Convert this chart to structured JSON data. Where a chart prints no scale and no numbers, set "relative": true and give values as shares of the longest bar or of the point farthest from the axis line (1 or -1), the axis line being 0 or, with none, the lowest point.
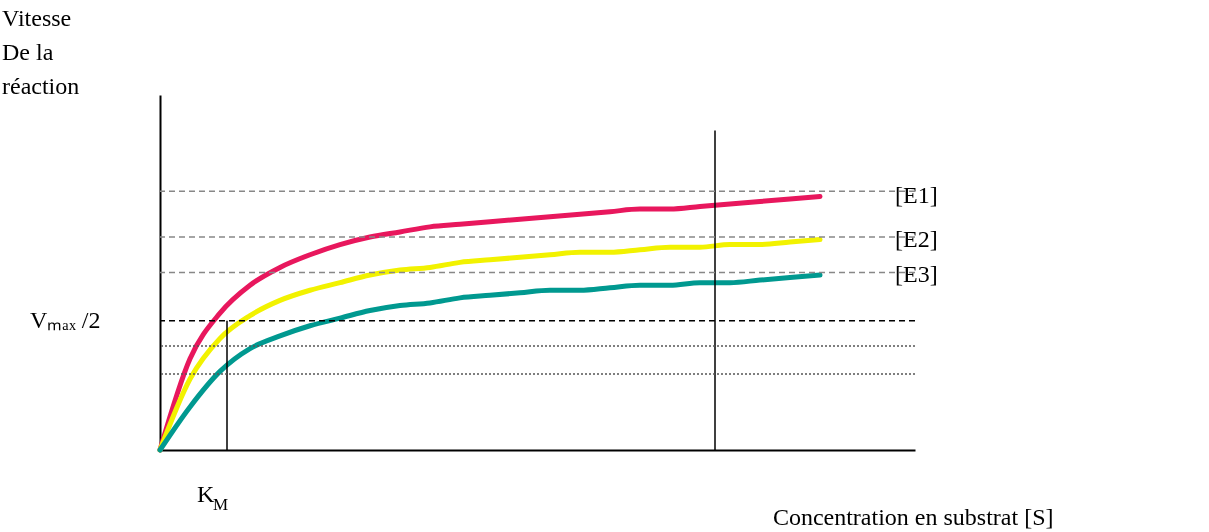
{
  "chart_data": {
    "type": "line",
    "relative": true,
    "xlabel": "Concentration en substrat [S]",
    "ylabel": "Vitesse\nDe la\nréaction",
    "categories": [
      null,
      null,
      null,
      null,
      null,
      null,
      null,
      null,
      null,
      null,
      null,
      null,
      null,
      null,
      null,
      null,
      null,
      null,
      null,
      null,
      null,
      null,
      null
    ],
    "series": [
      {
        "name": "[E1]",
        "color": "#e8175d",
        "values": [
          0,
          0.36,
          0.54,
          0.65,
          0.72,
          0.77,
          0.81,
          0.84,
          0.86,
          0.88,
          0.89,
          0.9,
          0.91,
          0.92,
          0.93,
          0.94,
          0.95,
          0.95,
          0.96,
          0.97,
          0.98,
          0.99,
          1
        ]
      },
      {
        "name": "[E2]",
        "color": "#f2f200",
        "values": [
          0,
          0.28,
          0.44,
          0.53,
          0.59,
          0.63,
          0.66,
          0.69,
          0.71,
          0.72,
          0.74,
          0.75,
          0.76,
          0.77,
          0.78,
          0.78,
          0.79,
          0.8,
          0.8,
          0.81,
          0.81,
          0.82,
          0.83
        ]
      },
      {
        "name": "[E3]",
        "color": "#009990",
        "values": [
          0,
          0.17,
          0.31,
          0.4,
          0.45,
          0.49,
          0.52,
          0.55,
          0.57,
          0.58,
          0.6,
          0.61,
          0.62,
          0.63,
          0.63,
          0.64,
          0.65,
          0.65,
          0.66,
          0.66,
          0.67,
          0.68,
          0.69
        ]
      }
    ],
    "ref_lines": [
      {
        "axis": "y",
        "value": 1.02,
        "color": "#888888",
        "line_style": "dashed"
      },
      {
        "axis": "y",
        "value": 0.84,
        "color": "#888888",
        "line_style": "dashed"
      },
      {
        "axis": "y",
        "value": 0.7,
        "color": "#888888",
        "line_style": "dashed"
      },
      {
        "axis": "y",
        "value": 0.51,
        "label": "Vₘₐₓ /2",
        "color": "#000000",
        "line_style": "dashed"
      },
      {
        "axis": "y",
        "value": 0.41,
        "color": "#555555",
        "line_style": "dotted"
      },
      {
        "axis": "y",
        "value": 0.3,
        "color": "#555555",
        "line_style": "dotted"
      }
    ],
    "annotations": [
      "K$_{M}$"
    ],
    "grid": false,
    "line_style": "solid",
    "marker": "none"
  }
}
